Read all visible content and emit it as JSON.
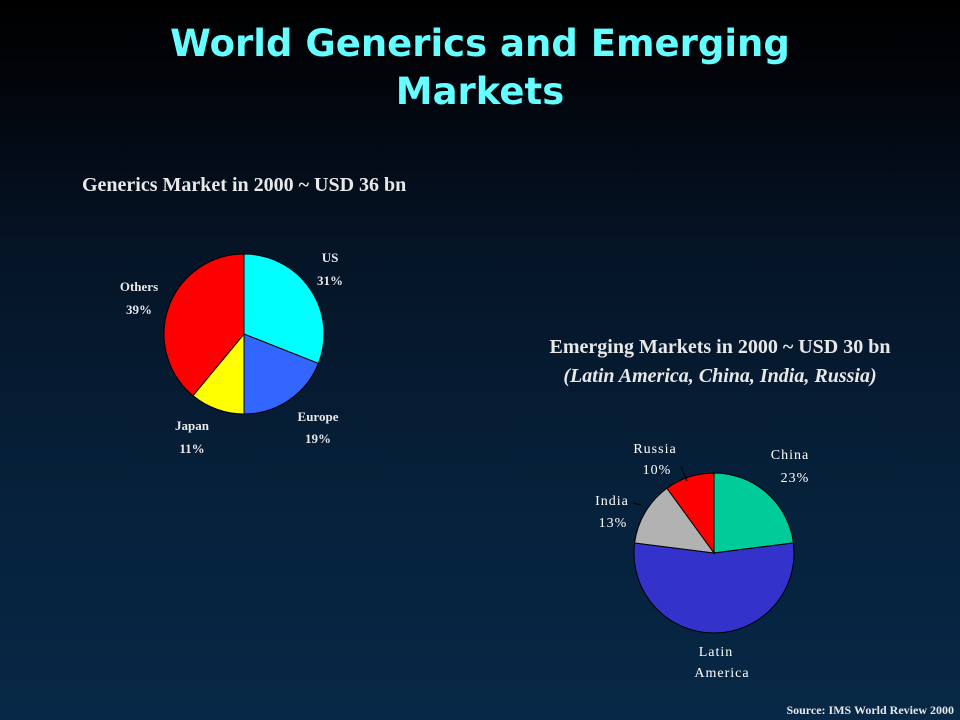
{
  "slide": {
    "title_line1": "World Generics and Emerging",
    "title_line2": "Markets",
    "source": "Source: IMS World Review 2000"
  },
  "chart_data": [
    {
      "type": "pie",
      "title": "Generics Market in 2000 ~ USD 36 bn",
      "slices": [
        {
          "label": "US",
          "value": 31,
          "value_label": "31%",
          "color": "#00ffff"
        },
        {
          "label": "Europe",
          "value": 19,
          "value_label": "19%",
          "color": "#3366ff"
        },
        {
          "label": "Japan",
          "value": 11,
          "value_label": "11%",
          "color": "#ffff00"
        },
        {
          "label": "Others",
          "value": 39,
          "value_label": "39%",
          "color": "#ff0000"
        }
      ]
    },
    {
      "type": "pie",
      "title": "Emerging Markets in 2000 ~ USD 30 bn",
      "subtitle": "(Latin America,  China, India, Russia)",
      "slices": [
        {
          "label": "China",
          "value": 23,
          "value_label": "23%",
          "color": "#00cc99"
        },
        {
          "label": "Latin America",
          "label_line1": "Latin",
          "label_line2": "America",
          "value": 54,
          "value_label": "",
          "color": "#3333cc"
        },
        {
          "label": "India",
          "value": 13,
          "value_label": "13%",
          "color": "#b2b2b2"
        },
        {
          "label": "Russia",
          "value": 10,
          "value_label": "10%",
          "color": "#ff0000"
        }
      ]
    }
  ]
}
